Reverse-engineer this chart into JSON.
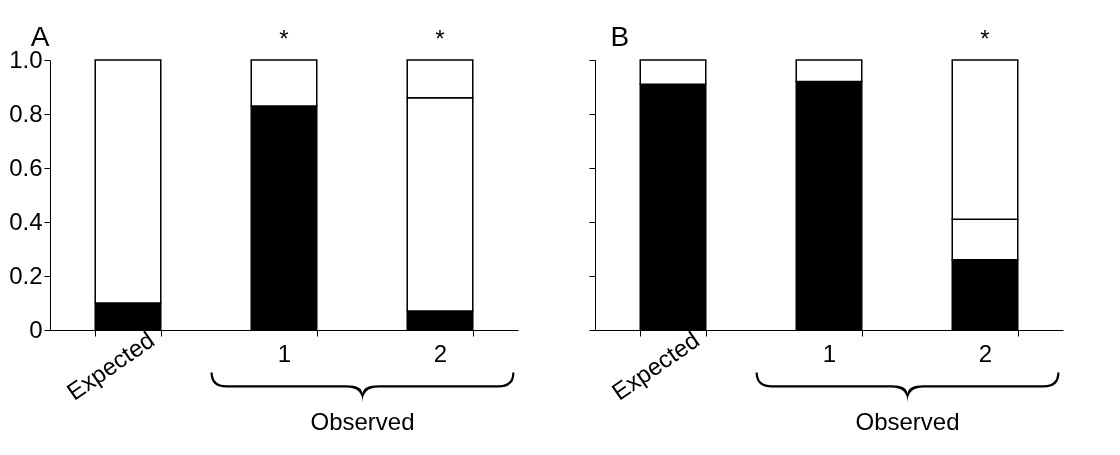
{
  "chart_data": [
    {
      "type": "bar",
      "title": "A",
      "categories": [
        "Expected",
        "1",
        "2"
      ],
      "xlabel": "Observed",
      "stacked": true,
      "series": [
        {
          "color": "#000000",
          "values": [
            0.1,
            0.83,
            0.07
          ]
        },
        {
          "color": "#ffffff",
          "values": [
            0.9,
            0.17,
            0.79
          ]
        },
        {
          "color": "#ffffff",
          "values": [
            null,
            null,
            0.14
          ]
        }
      ],
      "ylim": [
        0,
        1
      ],
      "yticks": [
        0,
        {
          "value": 0.2,
          "label": "0.2"
        },
        {
          "value": 0.4,
          "label": "0.4"
        },
        {
          "value": 0.6,
          "label": "0.6"
        },
        {
          "value": 0.8,
          "label": "0.8"
        },
        {
          "value": 1,
          "label": "1.0"
        }
      ],
      "annotations": [
        {
          "text": "*",
          "x": "1",
          "y": 1
        },
        {
          "text": "*",
          "x": "2",
          "y": 1
        }
      ]
    },
    {
      "type": "bar",
      "title": "B",
      "categories": [
        "Expected",
        "1",
        "2"
      ],
      "xlabel": "Observed",
      "stacked": true,
      "series": [
        {
          "color": "#000000",
          "values": [
            0.91,
            0.92,
            0.26
          ]
        },
        {
          "color": "#ffffff",
          "values": [
            0.09,
            0.08,
            0.15
          ]
        },
        {
          "color": "#ffffff",
          "values": [
            null,
            null,
            0.59
          ]
        }
      ],
      "ylim": [
        0,
        1
      ],
      "yticks": [
        {
          "value": 0,
          "label": null
        },
        {
          "value": 0.2,
          "label": null
        },
        {
          "value": 0.4,
          "label": null
        },
        {
          "value": 0.6,
          "label": null
        },
        {
          "value": 0.8,
          "label": null
        },
        {
          "value": 1,
          "label": null
        }
      ],
      "tick_labels": "x",
      "annotations": [
        {
          "text": "*",
          "x": "2",
          "y": 1
        }
      ]
    }
  ]
}
